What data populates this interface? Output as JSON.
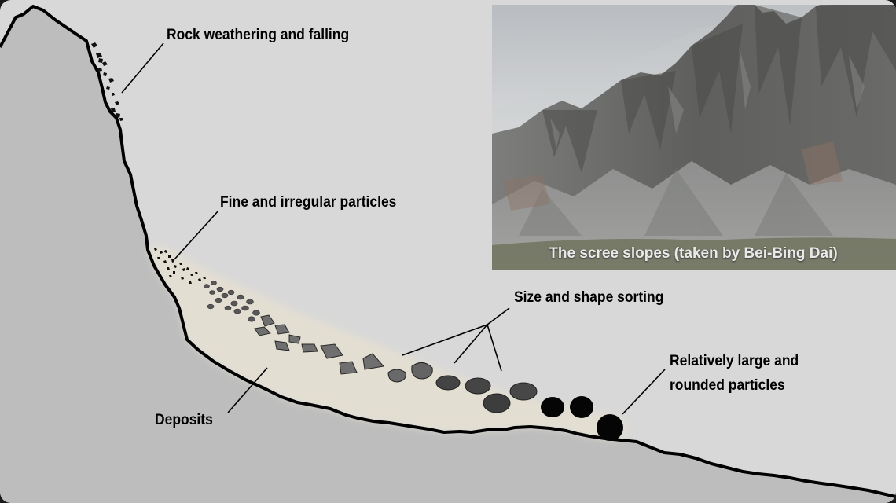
{
  "labels": {
    "rock_weathering": "Rock weathering and falling",
    "fine_particles": "Fine and irregular particles",
    "sorting": "Size and shape sorting",
    "large_rounded_line1": "Relatively large and",
    "large_rounded_line2": "rounded particles",
    "deposits": "Deposits"
  },
  "photo": {
    "caption": "The scree slopes (taken by Bei-Bing Dai)"
  },
  "colors": {
    "background": "#d8d8d8",
    "ground": "#bdbdbd",
    "deposit": "#e4dfd2",
    "outline": "#000000"
  }
}
